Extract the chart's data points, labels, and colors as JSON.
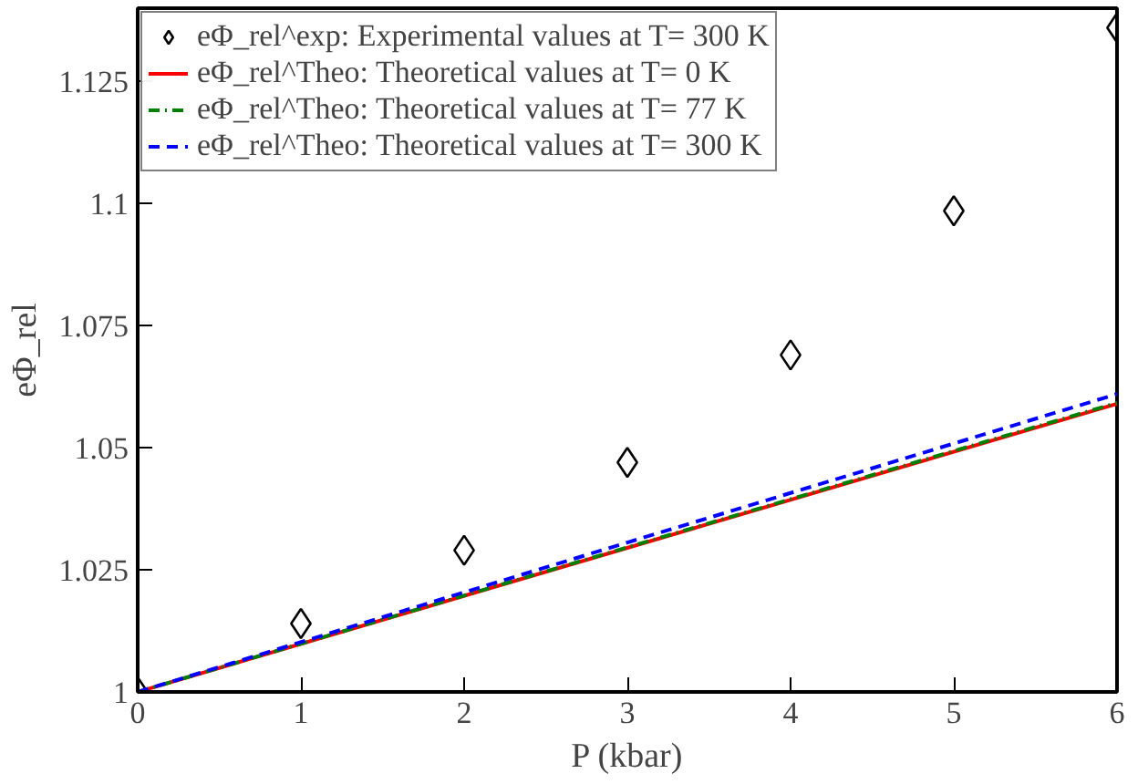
{
  "chart_data": {
    "type": "line",
    "xlabel": "P (kbar)",
    "ylabel": "eΦ_rel",
    "x": [
      0,
      1,
      2,
      3,
      4,
      5,
      6
    ],
    "series": [
      {
        "name": "eΦ_rel^exp: Experimental values at T= 300 K",
        "type": "scatter",
        "marker": "diamond",
        "color": "#000000",
        "values": [
          1.0,
          1.014,
          1.029,
          1.047,
          1.069,
          1.0985,
          1.136
        ]
      },
      {
        "name": "eΦ_rel^Theo: Theoretical values at T= 0 K",
        "line_style": "solid",
        "color": "#ff0000",
        "x": [
          0,
          3,
          6
        ],
        "values": [
          1.0,
          1.0295,
          1.059
        ]
      },
      {
        "name": "eΦ_rel^Theo: Theoretical values at T= 77 K",
        "line_style": "dashdot",
        "color": "#008000",
        "x": [
          0,
          3,
          6
        ],
        "values": [
          1.0,
          1.0296,
          1.0592
        ]
      },
      {
        "name": "eΦ_rel^Theo: Theoretical values at T= 300 K",
        "line_style": "dashed",
        "color": "#0000ff",
        "x": [
          0,
          3,
          6
        ],
        "values": [
          1.0,
          1.0306,
          1.061
        ]
      }
    ],
    "xlim": [
      0,
      6
    ],
    "xticks": [
      0,
      1,
      2,
      3,
      4,
      5,
      6
    ],
    "ylim": [
      1,
      1.14
    ],
    "yticks": [
      1,
      1.025,
      1.05,
      1.075,
      1.1,
      1.125
    ],
    "legend": "top left",
    "grid": false
  }
}
